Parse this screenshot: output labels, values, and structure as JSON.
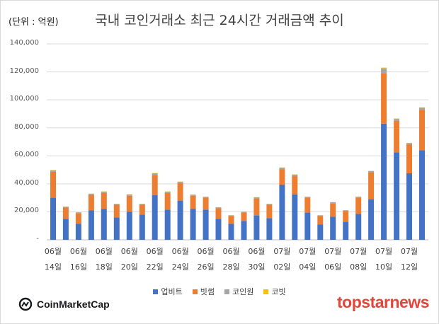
{
  "chart_data": {
    "type": "bar",
    "stacked": true,
    "title": "국내 코인거래소 최근 24시간 거래금액 추이",
    "unit_label": "(단위 : 억원)",
    "ylim": [
      0,
      140000
    ],
    "yticks": [
      "-",
      "20,000",
      "40,000",
      "60,000",
      "80,000",
      "100,000",
      "120,000",
      "140,000"
    ],
    "ytick_values": [
      0,
      20000,
      40000,
      60000,
      80000,
      100000,
      120000,
      140000
    ],
    "categories": [
      "06월 14일",
      "06월 15일",
      "06월 16일",
      "06월 17일",
      "06월 18일",
      "06월 19일",
      "06월 20일",
      "06월 21일",
      "06월 22일",
      "06월 23일",
      "06월 24일",
      "06월 25일",
      "06월 26일",
      "06월 27일",
      "06월 28일",
      "06월 29일",
      "06월 30일",
      "07월 01일",
      "07월 02일",
      "07월 03일",
      "07월 04일",
      "07월 05일",
      "07월 06일",
      "07월 07일",
      "07월 08일",
      "07월 09일",
      "07월 10일",
      "07월 11일",
      "07월 12일",
      "07월 13일"
    ],
    "xtick_labels": [
      {
        "index": 0,
        "top": "06월",
        "bottom": "14일"
      },
      {
        "index": 2,
        "top": "06월",
        "bottom": "16일"
      },
      {
        "index": 4,
        "top": "06월",
        "bottom": "18일"
      },
      {
        "index": 6,
        "top": "06월",
        "bottom": "20일"
      },
      {
        "index": 8,
        "top": "06월",
        "bottom": "22일"
      },
      {
        "index": 10,
        "top": "06월",
        "bottom": "24일"
      },
      {
        "index": 12,
        "top": "06월",
        "bottom": "26일"
      },
      {
        "index": 14,
        "top": "06월",
        "bottom": "28일"
      },
      {
        "index": 16,
        "top": "06월",
        "bottom": "30일"
      },
      {
        "index": 18,
        "top": "07월",
        "bottom": "02일"
      },
      {
        "index": 20,
        "top": "07월",
        "bottom": "04일"
      },
      {
        "index": 22,
        "top": "07월",
        "bottom": "06일"
      },
      {
        "index": 24,
        "top": "07월",
        "bottom": "08일"
      },
      {
        "index": 26,
        "top": "07월",
        "bottom": "10일"
      },
      {
        "index": 28,
        "top": "07월",
        "bottom": "12일"
      }
    ],
    "series": [
      {
        "name": "업비트",
        "color": "#4472c4",
        "values": [
          30000,
          15000,
          11500,
          21000,
          22000,
          16000,
          20000,
          18000,
          32000,
          21500,
          28000,
          22000,
          21500,
          15000,
          11500,
          13500,
          17500,
          15500,
          39500,
          32500,
          19500,
          11000,
          16500,
          13000,
          18500,
          29000,
          83000,
          62500,
          47500,
          64000
        ]
      },
      {
        "name": "빗썸",
        "color": "#ed7d31",
        "values": [
          18500,
          8000,
          7500,
          11000,
          11500,
          9000,
          11500,
          7000,
          14000,
          12000,
          12500,
          9500,
          8500,
          7500,
          5500,
          6000,
          12000,
          9500,
          11000,
          13000,
          10500,
          6000,
          9500,
          7500,
          11500,
          19000,
          36000,
          22500,
          20500,
          28500
        ]
      },
      {
        "name": "코인원",
        "color": "#a5a5a5",
        "values": [
          1200,
          700,
          600,
          900,
          900,
          700,
          900,
          700,
          1500,
          900,
          1000,
          800,
          800,
          700,
          500,
          600,
          900,
          700,
          1000,
          1100,
          800,
          500,
          800,
          600,
          800,
          1100,
          3500,
          1400,
          1100,
          1900
        ]
      },
      {
        "name": "코빗",
        "color": "#ffc000",
        "values": [
          200,
          100,
          100,
          150,
          150,
          100,
          150,
          100,
          200,
          150,
          150,
          100,
          100,
          100,
          100,
          100,
          150,
          100,
          200,
          200,
          100,
          100,
          150,
          100,
          150,
          200,
          500,
          300,
          200,
          300
        ]
      }
    ]
  },
  "footer": {
    "left_logo": "CoinMarketCap",
    "right_logo": "topstarnews"
  }
}
